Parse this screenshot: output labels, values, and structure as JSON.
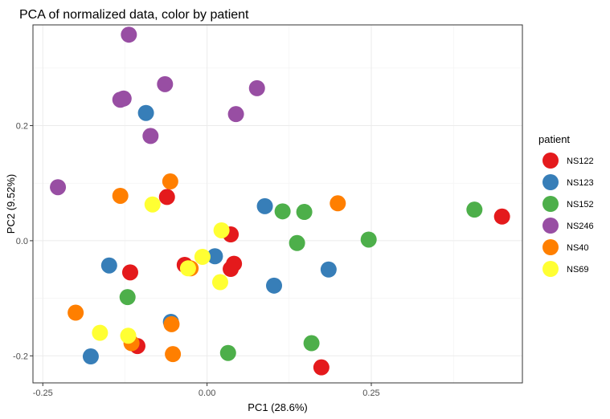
{
  "chart_data": {
    "type": "scatter",
    "title": "PCA of normalized data, color by patient",
    "xlabel": "PC1 (28.6%)",
    "ylabel": "PC2 (9.52%)",
    "xlim": [
      -0.265,
      0.48
    ],
    "ylim": [
      -0.247,
      0.375
    ],
    "x_ticks": [
      -0.25,
      0,
      0.25
    ],
    "x_tick_labels": [
      "-0.25",
      "0.00",
      "0.25"
    ],
    "y_ticks": [
      -0.2,
      0,
      0.2
    ],
    "y_tick_labels": [
      "-0.2",
      "0.0",
      "0.2"
    ],
    "grid": true,
    "legend": {
      "title": "patient",
      "position": "right"
    },
    "series": [
      {
        "name": "NS122",
        "color": "#E41A1C",
        "points": [
          [
            0.449,
            0.042
          ],
          [
            -0.061,
            0.076
          ],
          [
            -0.117,
            -0.055
          ],
          [
            0.036,
            0.011
          ],
          [
            -0.034,
            -0.042
          ],
          [
            0.041,
            -0.04
          ],
          [
            0.036,
            -0.049
          ],
          [
            -0.106,
            -0.183
          ],
          [
            0.174,
            -0.22
          ]
        ]
      },
      {
        "name": "NS123",
        "color": "#377EB8",
        "points": [
          [
            -0.093,
            0.222
          ],
          [
            0.088,
            0.06
          ],
          [
            0.012,
            -0.027
          ],
          [
            -0.149,
            -0.043
          ],
          [
            0.102,
            -0.078
          ],
          [
            0.185,
            -0.05
          ],
          [
            -0.055,
            -0.141
          ],
          [
            -0.177,
            -0.201
          ]
        ]
      },
      {
        "name": "NS152",
        "color": "#4DAF4A",
        "points": [
          [
            0.115,
            0.051
          ],
          [
            0.148,
            0.05
          ],
          [
            0.407,
            0.054
          ],
          [
            0.246,
            0.002
          ],
          [
            0.137,
            -0.004
          ],
          [
            -0.121,
            -0.098
          ],
          [
            0.159,
            -0.178
          ],
          [
            0.032,
            -0.195
          ]
        ]
      },
      {
        "name": "NS246",
        "color": "#984EA3",
        "points": [
          [
            -0.119,
            0.358
          ],
          [
            -0.064,
            0.272
          ],
          [
            0.076,
            0.265
          ],
          [
            -0.132,
            0.245
          ],
          [
            -0.127,
            0.247
          ],
          [
            0.044,
            0.22
          ],
          [
            -0.086,
            0.182
          ],
          [
            -0.227,
            0.093
          ]
        ]
      },
      {
        "name": "NS40",
        "color": "#FF7F00",
        "points": [
          [
            -0.056,
            0.103
          ],
          [
            -0.132,
            0.078
          ],
          [
            0.199,
            0.065
          ],
          [
            -0.025,
            -0.048
          ],
          [
            -0.2,
            -0.125
          ],
          [
            -0.054,
            -0.145
          ],
          [
            -0.115,
            -0.178
          ],
          [
            -0.052,
            -0.197
          ]
        ]
      },
      {
        "name": "NS69",
        "color": "#FFFF33",
        "points": [
          [
            -0.083,
            0.063
          ],
          [
            0.022,
            0.018
          ],
          [
            -0.007,
            -0.028
          ],
          [
            -0.029,
            -0.048
          ],
          [
            0.02,
            -0.072
          ],
          [
            -0.163,
            -0.16
          ],
          [
            -0.12,
            -0.165
          ]
        ]
      }
    ]
  }
}
